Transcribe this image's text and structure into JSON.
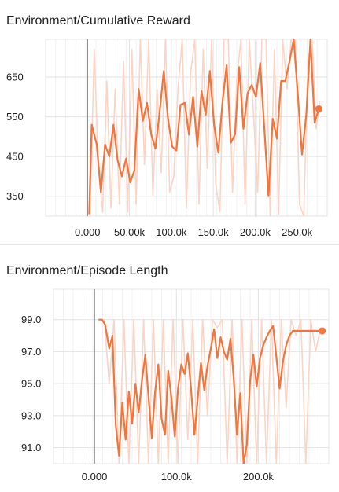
{
  "chart_data": [
    {
      "type": "line",
      "title": "Environment/Cumulative Reward",
      "xlabel": "",
      "ylabel": "",
      "xlim": [
        -50000,
        286000
      ],
      "ylim": [
        300,
        745
      ],
      "x_ticks": [
        0,
        50000,
        100000,
        150000,
        200000,
        250000
      ],
      "x_tick_labels": [
        "0.000",
        "50.00k",
        "100.0k",
        "150.0k",
        "200.0k",
        "250.0k"
      ],
      "y_ticks": [
        350,
        450,
        550,
        650
      ],
      "y_tick_labels": [
        "350",
        "450",
        "550",
        "650"
      ],
      "grid": true,
      "legend": "none",
      "smoothed_color": "#f4743b",
      "raw_color": "#fad5c7",
      "zero_line_color": "#8a8a8a",
      "series": [
        {
          "role": "smoothed",
          "x": [
            2000,
            5000,
            11000,
            16000,
            21000,
            26000,
            31000,
            36000,
            41000,
            46000,
            51000,
            56000,
            61000,
            66000,
            71000,
            76000,
            81000,
            86000,
            91000,
            96000,
            101000,
            106000,
            111000,
            116000,
            121000,
            126000,
            131000,
            136000,
            141000,
            146000,
            151000,
            156000,
            161000,
            166000,
            171000,
            176000,
            181000,
            186000,
            191000,
            196000,
            201000,
            206000,
            211000,
            216000,
            221000,
            226000,
            231000,
            236000,
            241000,
            246000,
            251000,
            256000,
            261000,
            266000,
            271000,
            276000
          ],
          "y": [
            305,
            530,
            480,
            360,
            480,
            450,
            530,
            440,
            400,
            445,
            385,
            415,
            620,
            540,
            585,
            505,
            470,
            560,
            665,
            545,
            475,
            465,
            580,
            585,
            505,
            600,
            475,
            615,
            555,
            665,
            530,
            460,
            585,
            680,
            485,
            505,
            675,
            520,
            610,
            630,
            600,
            685,
            520,
            350,
            545,
            495,
            640,
            640,
            690,
            745,
            605,
            455,
            555,
            745,
            535,
            570
          ]
        },
        {
          "role": "raw",
          "x": [
            3000,
            8000,
            13000,
            18000,
            23000,
            28000,
            33000,
            38000,
            43000,
            48000,
            53000,
            58000,
            63000,
            68000,
            73000,
            78000,
            83000,
            88000,
            93000,
            98000,
            103000,
            108000,
            113000,
            118000,
            123000,
            128000,
            133000,
            138000,
            143000,
            148000,
            153000,
            158000,
            163000,
            168000,
            173000,
            178000,
            183000,
            188000,
            193000,
            198000,
            203000,
            208000,
            213000,
            218000,
            223000,
            228000,
            233000,
            238000,
            243000,
            248000,
            253000,
            258000,
            263000,
            268000,
            273000,
            277000
          ],
          "y": [
            300,
            720,
            420,
            310,
            640,
            320,
            620,
            330,
            690,
            310,
            720,
            330,
            745,
            430,
            745,
            350,
            620,
            410,
            745,
            360,
            400,
            620,
            745,
            320,
            660,
            745,
            330,
            720,
            420,
            745,
            380,
            310,
            745,
            745,
            360,
            640,
            745,
            330,
            745,
            560,
            360,
            745,
            745,
            300,
            720,
            305,
            745,
            620,
            745,
            745,
            330,
            300,
            690,
            745,
            520,
            590
          ]
        }
      ]
    },
    {
      "type": "line",
      "title": "Environment/Episode Length",
      "xlabel": "",
      "ylabel": "",
      "xlim": [
        -50000,
        286000
      ],
      "ylim": [
        90.0,
        100.9
      ],
      "x_ticks": [
        0,
        100000,
        200000
      ],
      "x_tick_labels": [
        "0.000",
        "100.0k",
        "200.0k"
      ],
      "y_ticks": [
        91.0,
        93.0,
        95.0,
        97.0,
        99.0
      ],
      "y_tick_labels": [
        "91.0",
        "93.0",
        "95.0",
        "97.0",
        "99.0"
      ],
      "grid": true,
      "legend": "none",
      "smoothed_color": "#f4743b",
      "raw_color": "#fad5c7",
      "zero_line_color": "#8a8a8a",
      "series": [
        {
          "role": "smoothed",
          "x": [
            5000,
            9000,
            13000,
            18000,
            22000,
            26000,
            30000,
            34000,
            38000,
            42000,
            46000,
            50000,
            54000,
            58000,
            62000,
            66000,
            70000,
            74000,
            78000,
            82000,
            86000,
            90000,
            94000,
            98000,
            102000,
            106000,
            110000,
            114000,
            118000,
            122000,
            126000,
            130000,
            134000,
            138000,
            142000,
            146000,
            150000,
            154000,
            158000,
            162000,
            166000,
            170000,
            174000,
            178000,
            182000,
            186000,
            190000,
            194000,
            198000,
            202000,
            206000,
            210000,
            214000,
            218000,
            222000,
            226000,
            230000,
            234000,
            238000,
            242000,
            246000,
            250000,
            254000,
            258000,
            262000,
            266000,
            270000,
            274000,
            278000
          ],
          "y": [
            99.0,
            99.0,
            98.7,
            97.2,
            98.0,
            92.4,
            90.5,
            93.8,
            91.5,
            94.5,
            92.5,
            95.0,
            93.2,
            95.2,
            96.8,
            94.2,
            91.6,
            94.5,
            96.2,
            92.8,
            91.8,
            95.8,
            94.1,
            91.7,
            94.7,
            96.2,
            95.6,
            96.9,
            94.6,
            91.8,
            94.0,
            96.3,
            94.6,
            96.1,
            97.2,
            98.4,
            96.6,
            97.9,
            97.0,
            96.5,
            97.8,
            95.3,
            91.8,
            94.4,
            90.0,
            91.2,
            95.2,
            96.8,
            94.8,
            96.6,
            97.4,
            97.9,
            98.3,
            98.6,
            96.7,
            94.7,
            96.4,
            97.4,
            98.0,
            98.3,
            98.3,
            98.3,
            98.3,
            98.3,
            98.3,
            98.3,
            98.3,
            98.3,
            98.3
          ],
          "end_x": 278000,
          "end_y": 98.3
        },
        {
          "role": "raw",
          "x": [
            6000,
            12000,
            18000,
            24000,
            30000,
            36000,
            42000,
            48000,
            54000,
            60000,
            66000,
            72000,
            78000,
            84000,
            90000,
            96000,
            102000,
            108000,
            114000,
            120000,
            126000,
            132000,
            138000,
            144000,
            150000,
            156000,
            162000,
            168000,
            174000,
            180000,
            186000,
            192000,
            198000,
            204000,
            210000,
            216000,
            222000,
            228000,
            234000,
            240000,
            246000,
            252000,
            258000,
            264000,
            270000,
            276000
          ],
          "y": [
            99.0,
            99.0,
            95.0,
            99.0,
            90.0,
            99.0,
            90.0,
            99.0,
            90.0,
            99.0,
            90.0,
            99.0,
            90.0,
            99.0,
            90.0,
            99.0,
            90.0,
            99.0,
            91.5,
            99.0,
            90.0,
            99.0,
            93.0,
            99.0,
            98.5,
            99.0,
            90.0,
            99.0,
            90.0,
            99.0,
            90.0,
            99.0,
            90.0,
            99.0,
            90.0,
            99.0,
            90.0,
            99.0,
            93.5,
            99.0,
            98.0,
            99.0,
            90.0,
            99.0,
            97.0,
            98.5
          ]
        }
      ]
    }
  ]
}
